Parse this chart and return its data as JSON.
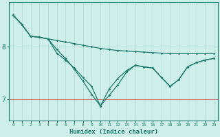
{
  "xlabel": "Humidex (Indice chaleur)",
  "ylabel": "",
  "background_color": "#cff0ea",
  "line_color": "#1a7a6e",
  "grid_color": "#b0ddd5",
  "red_line_color": "#cc6666",
  "x_values": [
    0,
    1,
    2,
    3,
    4,
    5,
    6,
    7,
    8,
    9,
    10,
    11,
    12,
    13,
    14,
    15,
    16,
    17,
    18,
    19,
    20,
    21,
    22,
    23
  ],
  "series1": [
    8.6,
    8.42,
    8.2,
    8.18,
    8.15,
    8.12,
    8.09,
    8.06,
    8.03,
    8.0,
    7.97,
    7.95,
    7.93,
    7.92,
    7.91,
    7.9,
    7.89,
    7.88,
    7.87,
    7.87,
    7.87,
    7.87,
    7.87,
    7.87
  ],
  "series2": [
    8.6,
    8.42,
    8.2,
    8.18,
    8.15,
    7.95,
    7.78,
    7.58,
    7.35,
    7.1,
    6.88,
    7.08,
    7.28,
    7.52,
    7.65,
    7.62,
    7.6,
    7.42,
    7.25,
    7.38,
    7.62,
    7.7,
    7.75,
    7.78
  ],
  "series3": [
    8.6,
    8.42,
    8.2,
    8.18,
    8.15,
    7.88,
    7.75,
    7.6,
    7.42,
    7.25,
    6.88,
    7.2,
    7.4,
    7.55,
    7.65,
    7.62,
    7.6,
    7.42,
    7.25,
    7.38,
    7.62,
    7.7,
    7.75,
    7.78
  ],
  "ylim": [
    6.6,
    8.85
  ],
  "yticks": [
    7,
    8
  ],
  "xticks": [
    0,
    1,
    2,
    3,
    4,
    5,
    6,
    7,
    8,
    9,
    10,
    11,
    12,
    13,
    14,
    15,
    16,
    17,
    18,
    19,
    20,
    21,
    22,
    23
  ],
  "hline_y": 7.0,
  "font_color": "#1a7a6e",
  "tick_fontsize_x": 4.5,
  "tick_fontsize_y": 7.0,
  "xlabel_fontsize": 6.5,
  "linewidth": 0.9,
  "markersize": 1.8
}
